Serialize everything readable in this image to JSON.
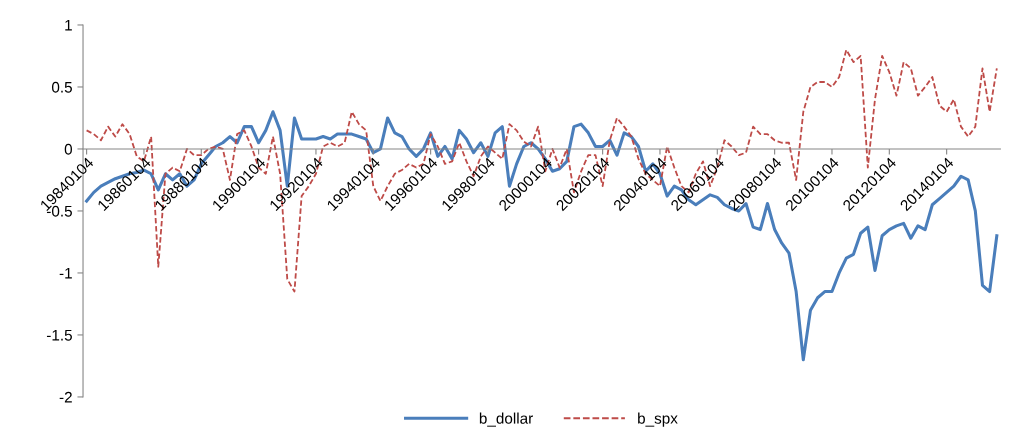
{
  "chart_data": {
    "type": "line",
    "categories": [
      "19840104",
      null,
      null,
      null,
      null,
      null,
      null,
      null,
      "19860104",
      null,
      null,
      null,
      null,
      null,
      null,
      null,
      "19880104",
      null,
      null,
      null,
      null,
      null,
      null,
      null,
      "19900104",
      null,
      null,
      null,
      null,
      null,
      null,
      null,
      "19920104",
      null,
      null,
      null,
      null,
      null,
      null,
      null,
      "19940104",
      null,
      null,
      null,
      null,
      null,
      null,
      null,
      "19960104",
      null,
      null,
      null,
      null,
      null,
      null,
      null,
      "19980104",
      null,
      null,
      null,
      null,
      null,
      null,
      null,
      "20000104",
      null,
      null,
      null,
      null,
      null,
      null,
      null,
      "20020104",
      null,
      null,
      null,
      null,
      null,
      null,
      null,
      "20040104",
      null,
      null,
      null,
      null,
      null,
      null,
      null,
      "20060104",
      null,
      null,
      null,
      null,
      null,
      null,
      null,
      "20080104",
      null,
      null,
      null,
      null,
      null,
      null,
      null,
      "20100104",
      null,
      null,
      null,
      null,
      null,
      null,
      null,
      "20120104",
      null,
      null,
      null,
      null,
      null,
      null,
      null,
      "20140104",
      null,
      null,
      null,
      null,
      null,
      null,
      null
    ],
    "series": [
      {
        "name": "b_dollar",
        "color": "#4a7ebb",
        "line_style": "solid",
        "values": [
          -0.42,
          -0.35,
          -0.3,
          -0.27,
          -0.24,
          -0.22,
          -0.2,
          -0.19,
          -0.17,
          -0.2,
          -0.33,
          -0.2,
          -0.25,
          -0.2,
          -0.3,
          -0.25,
          -0.12,
          -0.05,
          0.02,
          0.05,
          0.1,
          0.05,
          0.18,
          0.18,
          0.05,
          0.15,
          0.3,
          0.15,
          -0.3,
          0.25,
          0.08,
          0.08,
          0.08,
          0.1,
          0.08,
          0.12,
          0.12,
          0.12,
          0.1,
          0.08,
          -0.03,
          0.0,
          0.25,
          0.13,
          0.1,
          0.0,
          -0.06,
          0.0,
          0.13,
          -0.06,
          0.02,
          -0.08,
          0.15,
          0.08,
          -0.03,
          0.05,
          -0.06,
          0.13,
          0.18,
          -0.3,
          -0.12,
          0.02,
          0.05,
          0.0,
          -0.08,
          -0.18,
          -0.16,
          -0.1,
          0.18,
          0.2,
          0.13,
          0.02,
          0.02,
          0.07,
          -0.05,
          0.13,
          0.1,
          0.02,
          -0.18,
          -0.12,
          -0.2,
          -0.38,
          -0.3,
          -0.33,
          -0.41,
          -0.45,
          -0.41,
          -0.37,
          -0.39,
          -0.45,
          -0.48,
          -0.5,
          -0.44,
          -0.63,
          -0.65,
          -0.44,
          -0.65,
          -0.76,
          -0.84,
          -1.15,
          -1.7,
          -1.3,
          -1.2,
          -1.15,
          -1.15,
          -1.0,
          -0.88,
          -0.85,
          -0.68,
          -0.63,
          -0.98,
          -0.7,
          -0.65,
          -0.62,
          -0.6,
          -0.72,
          -0.62,
          -0.65,
          -0.45,
          -0.4,
          -0.35,
          -0.3,
          -0.22,
          -0.25,
          -0.5,
          -1.1,
          -1.15,
          -0.7
        ]
      },
      {
        "name": "b_spx",
        "color": "#be4b48",
        "line_style": "dashed",
        "values": [
          0.15,
          0.12,
          0.07,
          0.18,
          0.1,
          0.2,
          0.12,
          -0.06,
          -0.1,
          0.1,
          -0.95,
          -0.2,
          -0.15,
          -0.18,
          0.0,
          -0.05,
          -0.05,
          0.0,
          0.02,
          0.0,
          -0.25,
          0.12,
          0.15,
          0.02,
          -0.15,
          -0.2,
          0.1,
          -0.2,
          -1.05,
          -1.15,
          -0.38,
          -0.3,
          -0.2,
          0.02,
          0.05,
          0.02,
          0.05,
          0.3,
          0.2,
          0.15,
          -0.3,
          -0.42,
          -0.3,
          -0.2,
          -0.17,
          -0.12,
          -0.15,
          -0.12,
          0.12,
          0.02,
          -0.12,
          -0.1,
          0.05,
          -0.1,
          -0.22,
          -0.06,
          0.02,
          -0.03,
          -0.08,
          0.2,
          0.15,
          0.06,
          0.02,
          0.18,
          -0.18,
          0.0,
          -0.15,
          0.0,
          -0.35,
          -0.18,
          -0.05,
          -0.05,
          -0.3,
          0.07,
          0.25,
          0.18,
          0.1,
          -0.08,
          -0.2,
          -0.25,
          -0.3,
          0.02,
          -0.15,
          -0.3,
          -0.35,
          -0.2,
          -0.1,
          -0.3,
          -0.15,
          0.07,
          0.02,
          -0.05,
          -0.03,
          0.18,
          0.12,
          0.12,
          0.07,
          0.05,
          0.05,
          -0.25,
          0.3,
          0.5,
          0.54,
          0.54,
          0.5,
          0.58,
          0.8,
          0.7,
          0.75,
          -0.15,
          0.4,
          0.75,
          0.62,
          0.43,
          0.7,
          0.65,
          0.43,
          0.5,
          0.58,
          0.35,
          0.3,
          0.4,
          0.18,
          0.1,
          0.18,
          0.65,
          0.3,
          0.65
        ]
      }
    ],
    "ylim": [
      -2,
      1
    ],
    "yticks": [
      -2,
      -1.5,
      -1,
      -0.5,
      0,
      0.5,
      1
    ],
    "grid": false,
    "legend": "bottom",
    "marker": "none"
  }
}
